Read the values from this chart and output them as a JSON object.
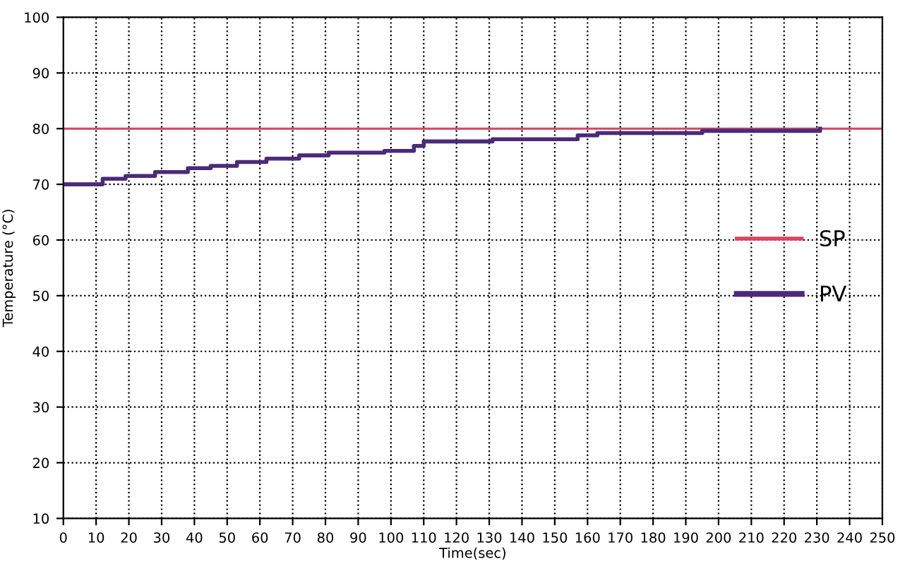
{
  "chart_data": {
    "type": "step",
    "xlabel": "Time(sec)",
    "ylabel": "Temperature (°C)",
    "xlim": [
      0,
      250
    ],
    "ylim": [
      10,
      100
    ],
    "xticks": [
      0,
      10,
      20,
      30,
      40,
      50,
      60,
      70,
      80,
      90,
      100,
      110,
      120,
      130,
      140,
      150,
      160,
      170,
      180,
      190,
      200,
      210,
      220,
      230,
      240,
      250
    ],
    "yticks": [
      10,
      20,
      30,
      40,
      50,
      60,
      70,
      80,
      90,
      100
    ],
    "grid": true,
    "legend": "right",
    "line_style": "solid",
    "series": [
      {
        "name": "SP",
        "color": "#d9455f",
        "x": [
          0,
          250
        ],
        "values": [
          80,
          80
        ]
      },
      {
        "name": "PV",
        "color": "#4b2a7a",
        "x": [
          0,
          12,
          19,
          28,
          38,
          45,
          53,
          62,
          72,
          81,
          98,
          107,
          110,
          131,
          157,
          163,
          195,
          231
        ],
        "values": [
          70,
          71,
          71.5,
          72.2,
          72.9,
          73.3,
          74,
          74.6,
          75.2,
          75.7,
          76,
          76.9,
          77.7,
          78.1,
          78.8,
          79.2,
          79.6,
          80
        ]
      }
    ]
  }
}
